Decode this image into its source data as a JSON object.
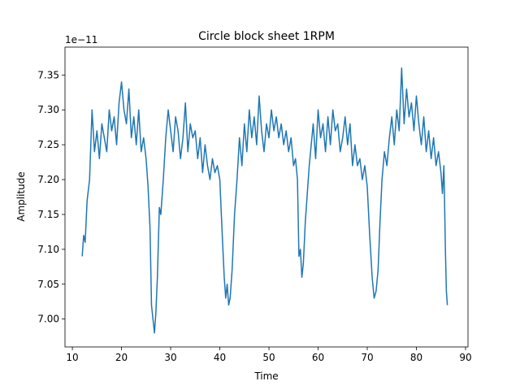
{
  "chart_data": {
    "type": "line",
    "title": "Circle block sheet 1RPM",
    "xlabel": "Time",
    "ylabel": "Amplitude",
    "offset_text": "1e−11",
    "xlim": [
      8.5,
      90.5
    ],
    "ylim": [
      6.96,
      7.39
    ],
    "xticks": [
      10,
      20,
      30,
      40,
      50,
      60,
      70,
      80,
      90
    ],
    "yticks": [
      7.0,
      7.05,
      7.1,
      7.15,
      7.2,
      7.25,
      7.3,
      7.35
    ],
    "xtick_labels": [
      "10",
      "20",
      "30",
      "40",
      "50",
      "60",
      "70",
      "80",
      "90"
    ],
    "ytick_labels": [
      "7.00",
      "7.05",
      "7.10",
      "7.15",
      "7.20",
      "7.25",
      "7.30",
      "7.35"
    ],
    "grid": false,
    "series": [
      {
        "color": "#1f77b4",
        "x": [
          12.0,
          12.3,
          12.6,
          13.0,
          13.5,
          14.0,
          14.5,
          15.0,
          15.5,
          16.0,
          16.5,
          17.0,
          17.5,
          18.0,
          18.5,
          19.0,
          19.5,
          20.0,
          20.5,
          21.0,
          21.5,
          22.0,
          22.5,
          23.0,
          23.5,
          24.0,
          24.5,
          25.0,
          25.4,
          25.8,
          26.1,
          26.4,
          26.7,
          27.0,
          27.3,
          27.7,
          28.0,
          28.5,
          29.0,
          29.5,
          30.0,
          30.5,
          31.0,
          31.5,
          32.0,
          32.5,
          33.0,
          33.5,
          34.0,
          34.5,
          35.0,
          35.5,
          36.0,
          36.5,
          37.0,
          37.5,
          38.0,
          38.5,
          39.0,
          39.5,
          40.0,
          40.5,
          40.9,
          41.2,
          41.5,
          41.8,
          42.1,
          42.5,
          43.0,
          43.5,
          44.0,
          44.5,
          45.0,
          45.5,
          46.0,
          46.5,
          47.0,
          47.5,
          48.0,
          48.5,
          49.0,
          49.5,
          50.0,
          50.5,
          51.0,
          51.5,
          52.0,
          52.5,
          53.0,
          53.5,
          54.0,
          54.5,
          55.0,
          55.4,
          55.8,
          56.1,
          56.4,
          56.7,
          57.0,
          57.4,
          57.8,
          58.2,
          58.6,
          59.0,
          59.5,
          60.0,
          60.5,
          61.0,
          61.5,
          62.0,
          62.5,
          63.0,
          63.5,
          64.0,
          64.5,
          65.0,
          65.5,
          66.0,
          66.5,
          67.0,
          67.5,
          68.0,
          68.5,
          69.0,
          69.5,
          70.0,
          70.5,
          71.0,
          71.4,
          71.8,
          72.2,
          72.6,
          73.0,
          73.5,
          74.0,
          74.5,
          75.0,
          75.5,
          76.0,
          76.5,
          77.0,
          77.5,
          78.0,
          78.5,
          79.0,
          79.5,
          80.0,
          80.5,
          81.0,
          81.5,
          82.0,
          82.5,
          83.0,
          83.5,
          84.0,
          84.5,
          85.0,
          85.3,
          85.6,
          85.9,
          86.1,
          86.3
        ],
        "y": [
          7.09,
          7.12,
          7.11,
          7.17,
          7.2,
          7.3,
          7.24,
          7.27,
          7.23,
          7.28,
          7.26,
          7.24,
          7.3,
          7.27,
          7.29,
          7.25,
          7.31,
          7.34,
          7.3,
          7.28,
          7.33,
          7.26,
          7.29,
          7.25,
          7.3,
          7.24,
          7.26,
          7.23,
          7.19,
          7.13,
          7.02,
          7.0,
          6.98,
          7.01,
          7.06,
          7.16,
          7.15,
          7.2,
          7.26,
          7.3,
          7.27,
          7.24,
          7.29,
          7.27,
          7.23,
          7.26,
          7.31,
          7.24,
          7.28,
          7.26,
          7.27,
          7.23,
          7.26,
          7.21,
          7.25,
          7.22,
          7.2,
          7.23,
          7.21,
          7.22,
          7.2,
          7.12,
          7.06,
          7.03,
          7.05,
          7.02,
          7.03,
          7.07,
          7.15,
          7.2,
          7.26,
          7.22,
          7.28,
          7.24,
          7.3,
          7.26,
          7.29,
          7.25,
          7.32,
          7.27,
          7.24,
          7.28,
          7.26,
          7.3,
          7.27,
          7.29,
          7.26,
          7.28,
          7.25,
          7.27,
          7.24,
          7.26,
          7.22,
          7.23,
          7.2,
          7.09,
          7.1,
          7.06,
          7.08,
          7.14,
          7.18,
          7.22,
          7.25,
          7.28,
          7.23,
          7.3,
          7.26,
          7.28,
          7.24,
          7.29,
          7.25,
          7.3,
          7.27,
          7.28,
          7.24,
          7.26,
          7.29,
          7.25,
          7.28,
          7.22,
          7.25,
          7.22,
          7.23,
          7.2,
          7.22,
          7.19,
          7.12,
          7.06,
          7.03,
          7.04,
          7.07,
          7.14,
          7.2,
          7.24,
          7.22,
          7.26,
          7.29,
          7.25,
          7.3,
          7.27,
          7.36,
          7.28,
          7.33,
          7.29,
          7.31,
          7.27,
          7.32,
          7.28,
          7.25,
          7.29,
          7.24,
          7.27,
          7.23,
          7.26,
          7.22,
          7.24,
          7.21,
          7.18,
          7.22,
          7.1,
          7.04,
          7.02
        ]
      }
    ]
  }
}
